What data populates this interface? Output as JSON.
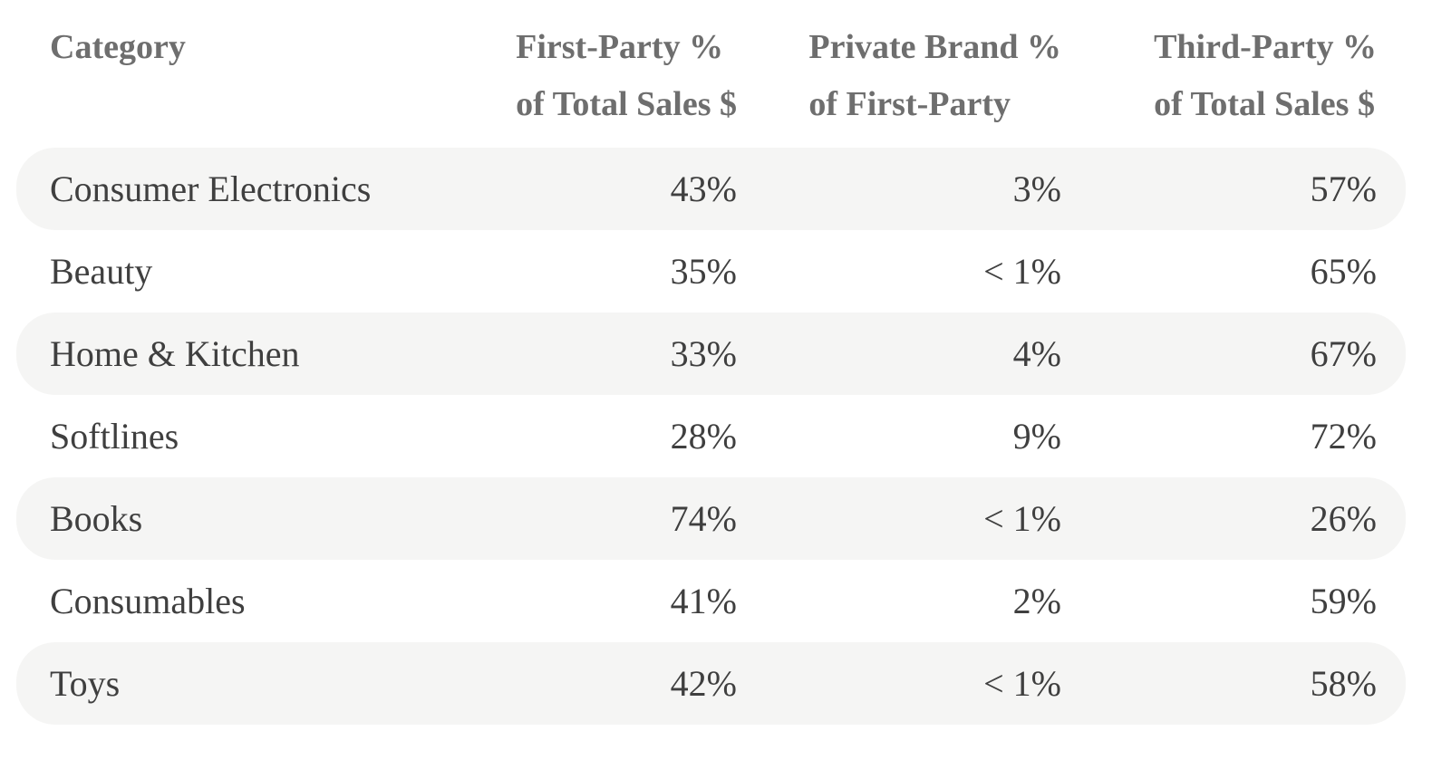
{
  "chart_data": {
    "type": "table",
    "columns": [
      "Category",
      "First-Party % of Total Sales $",
      "Private Brand % of First-Party",
      "Third-Party % of Total Sales $"
    ],
    "rows": [
      [
        "Consumer Electronics",
        "43%",
        "3%",
        "57%"
      ],
      [
        "Beauty",
        "35%",
        "< 1%",
        "65%"
      ],
      [
        "Home & Kitchen",
        "33%",
        "4%",
        "67%"
      ],
      [
        "Softlines",
        "28%",
        "9%",
        "72%"
      ],
      [
        "Books",
        "74%",
        "< 1%",
        "26%"
      ],
      [
        "Consumables",
        "41%",
        "2%",
        "59%"
      ],
      [
        "Toys",
        "42%",
        "< 1%",
        "58%"
      ]
    ],
    "layout_hints": {
      "alternating_row_background": true,
      "numeric_columns_right_aligned": true,
      "grid": false
    }
  },
  "table": {
    "headers": [
      {
        "line1": "Category",
        "line2": ""
      },
      {
        "line1": "First-Party %",
        "line2": "of Total Sales $"
      },
      {
        "line1": "Private Brand %",
        "line2": "of First-Party"
      },
      {
        "line1": "Third-Party %",
        "line2": "of Total Sales $"
      }
    ],
    "rows": [
      {
        "category": "Consumer Electronics",
        "first_party_pct": "43%",
        "private_brand_pct": "3%",
        "third_party_pct": "57%"
      },
      {
        "category": "Beauty",
        "first_party_pct": "35%",
        "private_brand_pct": "< 1%",
        "third_party_pct": "65%"
      },
      {
        "category": "Home & Kitchen",
        "first_party_pct": "33%",
        "private_brand_pct": "4%",
        "third_party_pct": "67%"
      },
      {
        "category": "Softlines",
        "first_party_pct": "28%",
        "private_brand_pct": "9%",
        "third_party_pct": "72%"
      },
      {
        "category": "Books",
        "first_party_pct": "74%",
        "private_brand_pct": "< 1%",
        "third_party_pct": "26%"
      },
      {
        "category": "Consumables",
        "first_party_pct": "41%",
        "private_brand_pct": "2%",
        "third_party_pct": "59%"
      },
      {
        "category": "Toys",
        "first_party_pct": "42%",
        "private_brand_pct": "< 1%",
        "third_party_pct": "58%"
      }
    ]
  },
  "colors": {
    "background": "#ffffff",
    "row_alt_bg": "#f5f5f4",
    "header_text": "#6e6e6e",
    "body_text": "#3f3f3f"
  }
}
